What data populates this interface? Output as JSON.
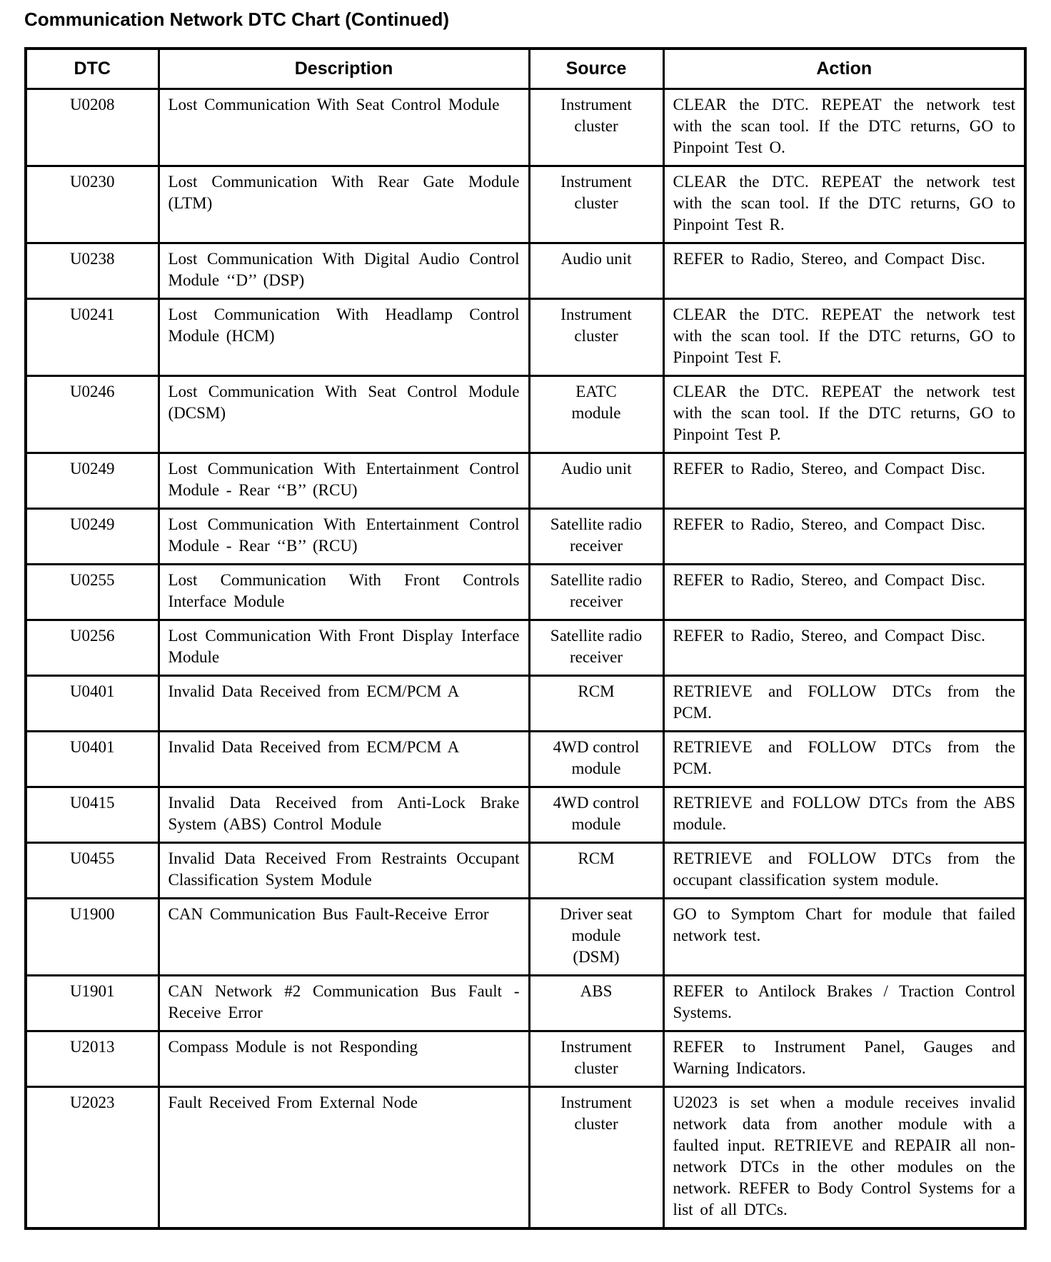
{
  "title": "Communication Network DTC Chart (Continued)",
  "colors": {
    "text": "#000000",
    "background": "#ffffff",
    "border": "#000000"
  },
  "table": {
    "headers": [
      "DTC",
      "Description",
      "Source",
      "Action"
    ],
    "rows": [
      {
        "dtc": "U0208",
        "description": "Lost Communication With Seat Control Module",
        "source": "Instrument\ncluster",
        "action": "CLEAR the DTC. REPEAT the network test with the scan tool. If the DTC returns, GO to Pinpoint Test O."
      },
      {
        "dtc": "U0230",
        "description": "Lost Communication With Rear Gate Module (LTM)",
        "source": "Instrument\ncluster",
        "action": "CLEAR the DTC. REPEAT the network test with the scan tool. If the DTC returns, GO to Pinpoint Test R."
      },
      {
        "dtc": "U0238",
        "description": "Lost Communication With Digital Audio Control Module ‘‘D’’ (DSP)",
        "source": "Audio unit",
        "action": "REFER to Radio, Stereo, and Compact Disc."
      },
      {
        "dtc": "U0241",
        "description": "Lost Communication With Headlamp Control Module (HCM)",
        "source": "Instrument\ncluster",
        "action": "CLEAR the DTC. REPEAT the network test with the scan tool. If the DTC returns, GO to Pinpoint Test F."
      },
      {
        "dtc": "U0246",
        "description": "Lost Communication With Seat Control Module (DCSM)",
        "source": "EATC\nmodule",
        "action": "CLEAR the DTC. REPEAT the network test with the scan tool. If the DTC returns, GO to Pinpoint Test P."
      },
      {
        "dtc": "U0249",
        "description": "Lost Communication With Entertainment Control Module - Rear ‘‘B’’ (RCU)",
        "source": "Audio unit",
        "action": "REFER to Radio, Stereo, and Compact Disc."
      },
      {
        "dtc": "U0249",
        "description": "Lost Communication With Entertainment Control Module - Rear ‘‘B’’ (RCU)",
        "source": "Satellite radio\nreceiver",
        "action": "REFER to Radio, Stereo, and Compact Disc."
      },
      {
        "dtc": "U0255",
        "description": "Lost Communication With Front Controls Interface Module",
        "source": "Satellite radio\nreceiver",
        "action": "REFER to Radio, Stereo, and Compact Disc."
      },
      {
        "dtc": "U0256",
        "description": "Lost Communication With Front Display Interface Module",
        "source": "Satellite radio\nreceiver",
        "action": "REFER to Radio, Stereo, and Compact Disc."
      },
      {
        "dtc": "U0401",
        "description": "Invalid Data Received from ECM/PCM A",
        "source": "RCM",
        "action": "RETRIEVE and FOLLOW DTCs from the PCM."
      },
      {
        "dtc": "U0401",
        "description": "Invalid Data Received from ECM/PCM A",
        "source": "4WD control\nmodule",
        "action": "RETRIEVE and FOLLOW DTCs from the PCM."
      },
      {
        "dtc": "U0415",
        "description": "Invalid Data Received from Anti-Lock Brake System (ABS) Control Module",
        "source": "4WD control\nmodule",
        "action": "RETRIEVE and FOLLOW DTCs from the ABS module."
      },
      {
        "dtc": "U0455",
        "description": "Invalid Data Received From Restraints Occupant Classification System Module",
        "source": "RCM",
        "action": "RETRIEVE and FOLLOW DTCs from the occupant classification system module."
      },
      {
        "dtc": "U1900",
        "description": "CAN Communication Bus Fault-Receive Error",
        "source": "Driver seat\nmodule\n(DSM)",
        "action": "GO to Symptom Chart for module that failed network test."
      },
      {
        "dtc": "U1901",
        "description": "CAN Network #2 Communication Bus Fault - Receive Error",
        "source": "ABS",
        "action": "REFER to Antilock Brakes / Traction Control Systems."
      },
      {
        "dtc": "U2013",
        "description": "Compass Module is not Responding",
        "source": "Instrument\ncluster",
        "action": "REFER to Instrument Panel, Gauges and Warning Indicators."
      },
      {
        "dtc": "U2023",
        "description": "Fault Received From External Node",
        "source": "Instrument\ncluster",
        "action": "U2023 is set when a module receives invalid network data from another module with a faulted input. RETRIEVE and REPAIR all non-network DTCs in the other modules on the network. REFER to Body Control Systems for a list of all DTCs."
      }
    ]
  }
}
